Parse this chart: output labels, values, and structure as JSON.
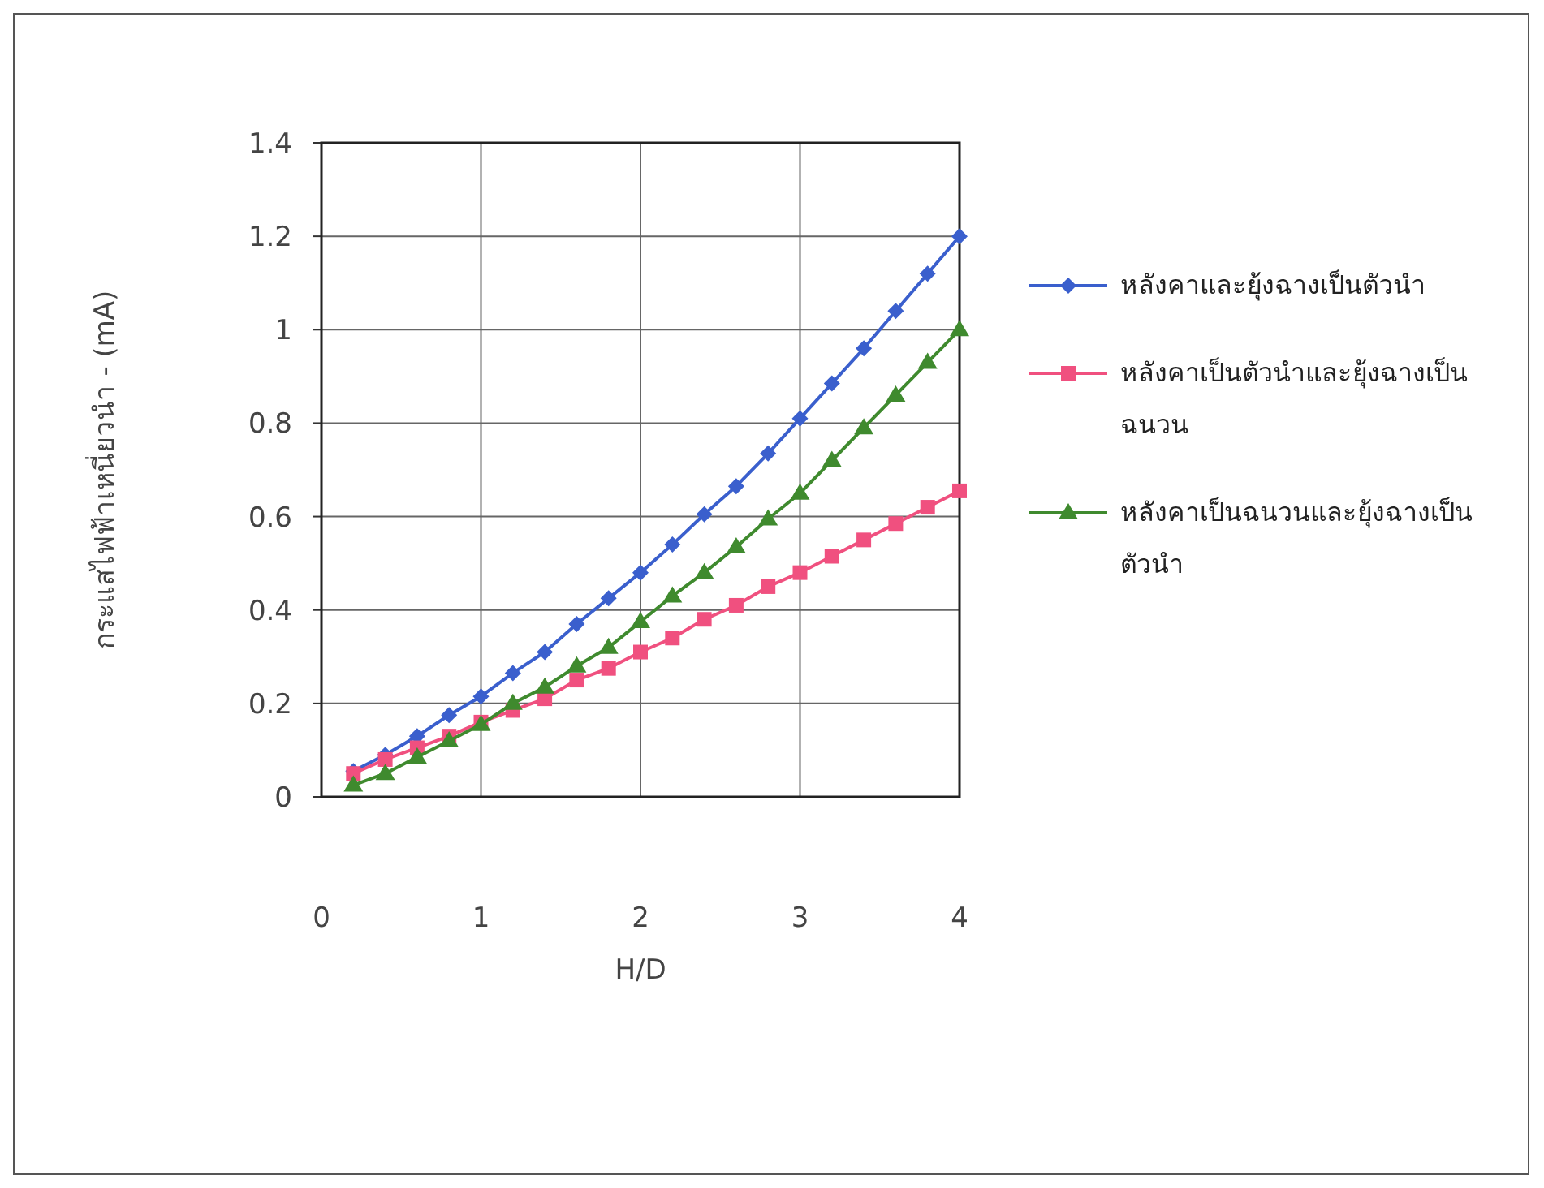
{
  "chart_data": {
    "type": "line",
    "xlabel": "H/D",
    "ylabel": "กระแสไฟฟ้าเหนี่ยวนำ - (mA)",
    "xlim": [
      0,
      4
    ],
    "xticks": [
      0,
      1,
      2,
      3,
      4
    ],
    "ylim": [
      0,
      1.4
    ],
    "yticks": [
      0,
      0.2,
      0.4,
      0.6,
      0.8,
      1,
      1.2,
      1.4
    ],
    "grid": true,
    "legend": "right",
    "line_style": "solid",
    "x": [
      0.2,
      0.4,
      0.6,
      0.8,
      1.0,
      1.2,
      1.4,
      1.6,
      1.8,
      2.0,
      2.2,
      2.4,
      2.6,
      2.8,
      3.0,
      3.2,
      3.4,
      3.6,
      3.8,
      4.0
    ],
    "series": [
      {
        "name": "หลังคาและยุ้งฉางเป็นตัวนำ",
        "color": "#3a5fcd",
        "marker": "diamond",
        "values": [
          0.055,
          0.09,
          0.13,
          0.175,
          0.215,
          0.265,
          0.31,
          0.37,
          0.425,
          0.48,
          0.54,
          0.605,
          0.665,
          0.735,
          0.81,
          0.885,
          0.96,
          1.04,
          1.12,
          1.2
        ]
      },
      {
        "name": "หลังคาเป็นตัวนำและยุ้งฉางเป็นฉนวน",
        "color": "#f0507f",
        "marker": "square",
        "values": [
          0.05,
          0.08,
          0.105,
          0.13,
          0.16,
          0.185,
          0.21,
          0.25,
          0.275,
          0.31,
          0.34,
          0.38,
          0.41,
          0.45,
          0.48,
          0.515,
          0.55,
          0.585,
          0.62,
          0.655
        ]
      },
      {
        "name": "หลังคาเป็นฉนวนและยุ้งฉางเป็นตัวนำ",
        "color": "#3f8a2e",
        "marker": "triangle",
        "values": [
          0.025,
          0.05,
          0.085,
          0.12,
          0.155,
          0.2,
          0.235,
          0.28,
          0.32,
          0.375,
          0.43,
          0.48,
          0.535,
          0.595,
          0.65,
          0.72,
          0.79,
          0.86,
          0.93,
          1.0
        ]
      }
    ]
  }
}
